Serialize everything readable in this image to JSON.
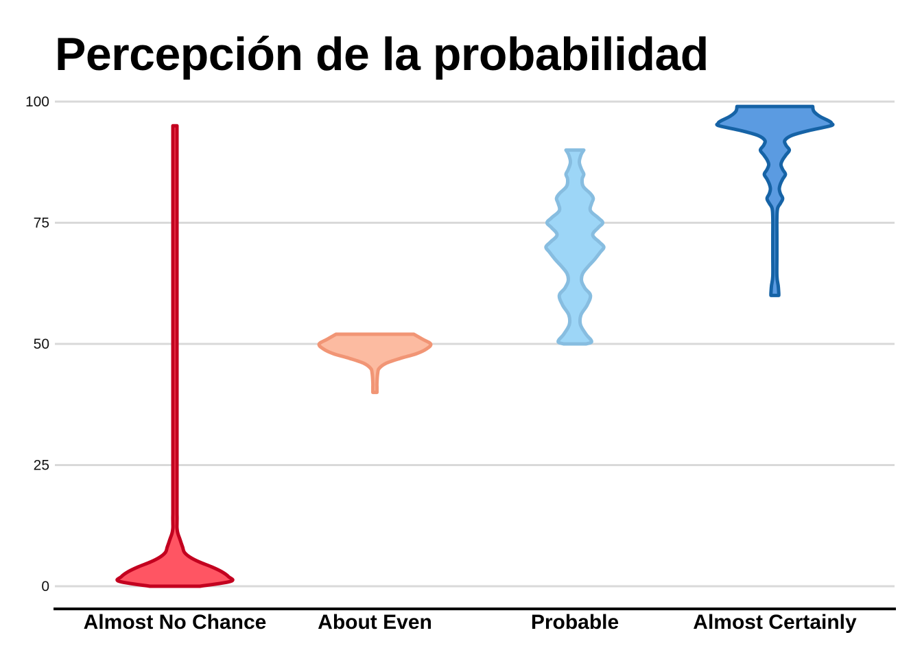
{
  "chart_data": {
    "type": "violin",
    "title": "Percepción de la probabilidad",
    "xlabel": "",
    "ylabel": "",
    "ylim": [
      0,
      100
    ],
    "yticks": [
      0,
      25,
      50,
      75,
      100
    ],
    "grid": true,
    "categories": [
      "Almost No Chance",
      "About Even",
      "Probable",
      "Almost Certainly"
    ],
    "colors": {
      "fill": [
        "#ff5563",
        "#fcbba1",
        "#9dd6f7",
        "#5b9be1"
      ],
      "stroke": [
        "#c3001f",
        "#f19575",
        "#87bde0",
        "#1663a6"
      ]
    },
    "series": [
      {
        "density_y": [
          0,
          1,
          2,
          3,
          4,
          5,
          6,
          7,
          8,
          9,
          10,
          11,
          12,
          13,
          14,
          15,
          16,
          17,
          18,
          20,
          30,
          50,
          70,
          85,
          92,
          93.5,
          94.5,
          95
        ],
        "density_w": [
          0.45,
          1.0,
          0.96,
          0.84,
          0.66,
          0.44,
          0.27,
          0.17,
          0.14,
          0.11,
          0.08,
          0.05,
          0.03,
          0.032,
          0.038,
          0.03,
          0.02,
          0.015,
          0.012,
          0.01,
          0.01,
          0.01,
          0.01,
          0.01,
          0.012,
          0.02,
          0.035,
          0.035
        ],
        "min": 0,
        "max": 95
      },
      {
        "density_y": [
          40,
          41,
          42,
          44,
          45,
          46,
          47,
          48,
          49,
          50,
          51,
          52
        ],
        "density_w": [
          0.02,
          0.03,
          0.035,
          0.05,
          0.08,
          0.2,
          0.45,
          0.75,
          0.93,
          1.0,
          0.85,
          0.7
        ],
        "min": 40,
        "max": 52
      },
      {
        "density_y": [
          50,
          50.5,
          52,
          54,
          56,
          58,
          60,
          61.5,
          63,
          64.5,
          66,
          67.5,
          69,
          70,
          71,
          72.5,
          74,
          75,
          76,
          77.5,
          79,
          80,
          81,
          82.5,
          84,
          85,
          86,
          87.5,
          89,
          90
        ],
        "density_w": [
          0.2,
          0.3,
          0.2,
          0.1,
          0.11,
          0.22,
          0.28,
          0.18,
          0.12,
          0.14,
          0.24,
          0.36,
          0.46,
          0.52,
          0.44,
          0.32,
          0.42,
          0.5,
          0.42,
          0.28,
          0.3,
          0.33,
          0.28,
          0.15,
          0.13,
          0.16,
          0.12,
          0.08,
          0.11,
          0.16
        ],
        "min": 50,
        "max": 90
      },
      {
        "density_y": [
          60,
          60.5,
          62,
          64,
          68,
          72,
          76,
          78,
          79,
          80,
          81,
          82,
          83,
          84,
          85,
          86,
          87,
          88,
          89,
          90,
          91,
          92,
          93,
          94,
          95,
          95.5,
          96,
          97,
          98,
          99
        ],
        "density_w": [
          0.07,
          0.07,
          0.06,
          0.025,
          0.02,
          0.02,
          0.03,
          0.05,
          0.1,
          0.14,
          0.1,
          0.08,
          0.1,
          0.14,
          0.19,
          0.14,
          0.11,
          0.14,
          0.2,
          0.26,
          0.2,
          0.18,
          0.3,
          0.6,
          1.0,
          1.02,
          0.97,
          0.8,
          0.7,
          0.68
        ],
        "min": 60,
        "max": 99
      }
    ]
  }
}
